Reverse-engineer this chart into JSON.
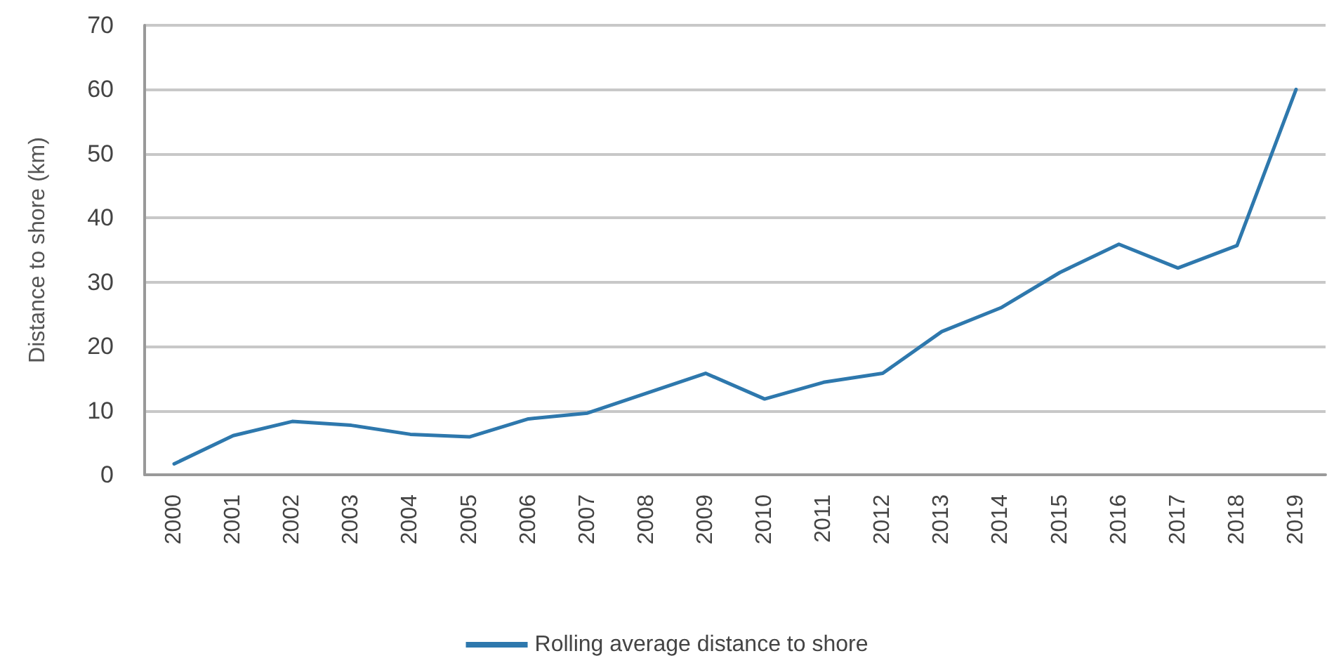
{
  "chart_data": {
    "type": "line",
    "ylabel": "Distance to shore (km)",
    "categories": [
      "2000",
      "2001",
      "2002",
      "2003",
      "2004",
      "2005",
      "2006",
      "2007",
      "2008",
      "2009",
      "2010",
      "2011",
      "2012",
      "2013",
      "2014",
      "2015",
      "2016",
      "2017",
      "2018",
      "2019"
    ],
    "series": [
      {
        "name": "Rolling average distance to shore",
        "color": "#2e78ad",
        "values": [
          1.7,
          6.1,
          8.3,
          7.7,
          6.3,
          5.9,
          8.7,
          9.6,
          12.7,
          15.8,
          11.8,
          14.4,
          15.8,
          22.3,
          26,
          31.5,
          35.9,
          32.2,
          35.7,
          60
        ]
      }
    ],
    "ylim": [
      0,
      70
    ],
    "yticks": [
      0,
      10,
      20,
      30,
      40,
      50,
      60,
      70
    ],
    "grid": "y",
    "legend": "bottom",
    "marker": "none",
    "line_style": "solid"
  }
}
